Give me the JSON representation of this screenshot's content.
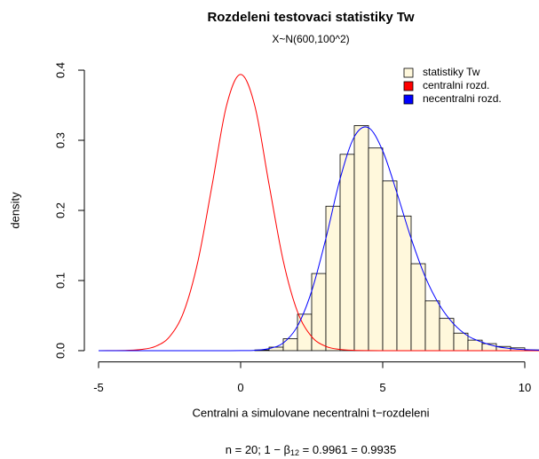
{
  "chart_data": {
    "type": "histogram",
    "title": "Rozdeleni testovaci statistiky Tw",
    "subtitle": "X~N(600,100^2)",
    "xlabel": "Centralni a simulovane necentralni t−rozdeleni",
    "ylabel": "density",
    "annotation": {
      "prefix": "n = 20; 1 − β",
      "subscript": "12",
      "suffix": " = 0.9961 = 0.9935"
    },
    "xlim": [
      -5.5,
      10.5
    ],
    "ylim": [
      -0.016,
      0.416
    ],
    "xticks": [
      -5,
      0,
      5,
      10
    ],
    "yticks": [
      {
        "value": 0,
        "label": "0.0"
      },
      0.1,
      0.2,
      0.3,
      0.4
    ],
    "legend": "topright",
    "bins": [
      0.5,
      1.0,
      1.5,
      2.0,
      2.5,
      3.0,
      3.5,
      4.0,
      4.5,
      5.0,
      5.5,
      6.0,
      6.5,
      7.0,
      7.5,
      8.0,
      8.5,
      9.0,
      9.5,
      10.0,
      10.5
    ],
    "histogram": {
      "name": "statistiky Tw",
      "color": "#fff8dc",
      "values": [
        0.001,
        0.005,
        0.017,
        0.052,
        0.11,
        0.206,
        0.28,
        0.321,
        0.289,
        0.242,
        0.192,
        0.124,
        0.071,
        0.046,
        0.025,
        0.015,
        0.01,
        0.006,
        0.004,
        0.001
      ]
    },
    "x": [
      -5,
      -4.5,
      -4,
      -3.5,
      -3,
      -2.5,
      -2,
      -1.5,
      -1,
      -0.5,
      0,
      0.5,
      1,
      1.5,
      2,
      2.5,
      3,
      3.5,
      4,
      4.5,
      5,
      5.5,
      6,
      6.5,
      7,
      7.5,
      8,
      8.5,
      9,
      9.5,
      10,
      10.5
    ],
    "series": [
      {
        "name": "centralni rozd.",
        "color": "#ff0000",
        "values": [
          0,
          0.0001,
          0.0004,
          0.0017,
          0.0061,
          0.0199,
          0.0556,
          0.128,
          0.237,
          0.349,
          0.3939,
          0.349,
          0.237,
          0.128,
          0.0556,
          0.0199,
          0.0061,
          0.0017,
          0.0004,
          0.0001,
          0,
          0,
          0,
          0,
          0,
          0,
          0,
          0,
          0,
          0,
          0,
          0
        ]
      },
      {
        "name": "necentralni rozd.",
        "color": "#0000ff",
        "values": [
          0,
          0,
          0,
          0,
          0,
          0,
          0,
          0,
          0,
          0,
          0.0001,
          0.0005,
          0.003,
          0.011,
          0.035,
          0.085,
          0.16,
          0.245,
          0.305,
          0.318,
          0.285,
          0.225,
          0.16,
          0.105,
          0.065,
          0.038,
          0.021,
          0.012,
          0.006,
          0.003,
          0.0015,
          0.0008
        ]
      }
    ]
  }
}
